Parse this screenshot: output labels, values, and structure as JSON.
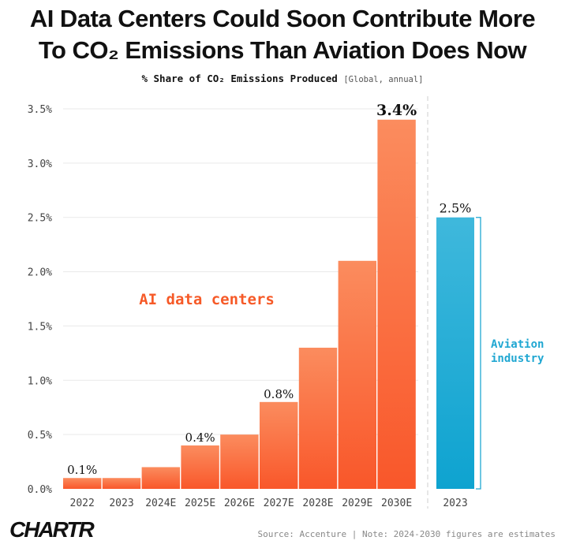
{
  "title_line1": "AI Data Centers Could Soon Contribute More",
  "title_line2": "To CO₂ Emissions Than Aviation Does Now",
  "subtitle_main": "% Share of CO₂ Emissions Produced",
  "subtitle_note": "[Global, annual]",
  "footer": {
    "logo": "CHARTR",
    "source": "Source: Accenture | Note: 2024-2030 figures are estimates"
  },
  "colors": {
    "ai_top": "#fb8c5e",
    "ai_bottom": "#f9572a",
    "aviation_top": "#3fb8dc",
    "aviation_bottom": "#0ea3d0",
    "ai_label": "#f65a28",
    "aviation_label": "#20a7d2",
    "grid": "#e9e9e9",
    "axis_text": "#444444"
  },
  "chart_data": {
    "type": "bar",
    "ylim": [
      0,
      3.5
    ],
    "yticks": [
      "0.0%",
      "0.5%",
      "1.0%",
      "1.5%",
      "2.0%",
      "2.5%",
      "3.0%",
      "3.5%"
    ],
    "ytick_values": [
      0,
      0.5,
      1.0,
      1.5,
      2.0,
      2.5,
      3.0,
      3.5
    ],
    "grid": true,
    "series": [
      {
        "name": "AI data centers",
        "categories": [
          "2022",
          "2023",
          "2024E",
          "2025E",
          "2026E",
          "2027E",
          "2028E",
          "2029E",
          "2030E"
        ],
        "values": [
          0.1,
          0.1,
          0.2,
          0.4,
          0.5,
          0.8,
          1.3,
          2.1,
          3.4
        ],
        "data_labels": [
          "0.1%",
          "",
          "",
          "0.4%",
          "",
          "0.8%",
          "",
          "",
          "3.4%"
        ]
      },
      {
        "name": "Aviation industry",
        "categories": [
          "2023"
        ],
        "values": [
          2.5
        ],
        "data_labels": [
          "2.5%"
        ]
      }
    ],
    "annotations": {
      "ai_label": "AI data centers",
      "aviation_label_line1": "Aviation",
      "aviation_label_line2": "industry"
    }
  }
}
